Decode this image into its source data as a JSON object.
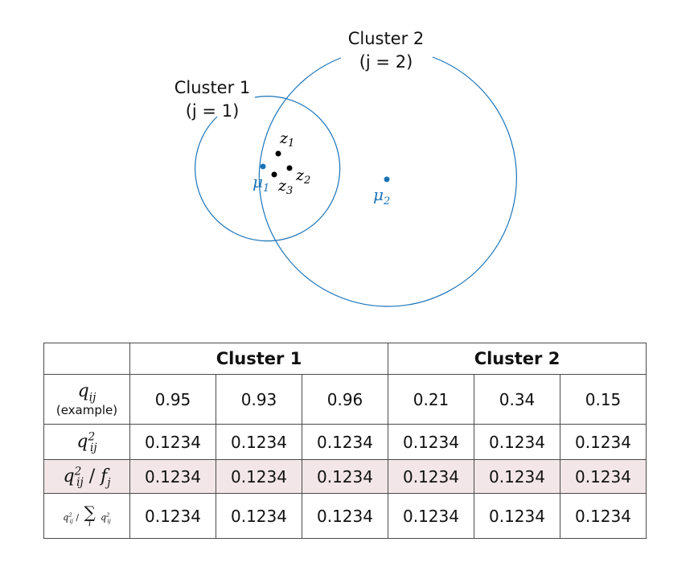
{
  "diagram": {
    "cluster1_title": "Cluster 1",
    "cluster1_sub": "(j = 1)",
    "cluster2_title": "Cluster 2",
    "cluster2_sub": "(j = 2)",
    "mu1": "μ",
    "mu1_sub": "1",
    "mu2": "μ",
    "mu2_sub": "2",
    "z1": "z",
    "z1_sub": "1",
    "z2": "z",
    "z2_sub": "2",
    "z3": "z",
    "z3_sub": "3",
    "colors": {
      "circle": "#1a73b8",
      "centroid": "#1a73b8",
      "point": "#000000"
    }
  },
  "table": {
    "groups": [
      "Cluster 1",
      "Cluster 2"
    ],
    "rows": [
      {
        "label_sym": "q",
        "label_sub": "ij",
        "label_note": "(example)",
        "values": [
          "0.95",
          "0.93",
          "0.96",
          "0.21",
          "0.34",
          "0.15"
        ]
      },
      {
        "label_sym": "q",
        "label_sub": "ij",
        "label_sup": "2",
        "values": [
          "0.1234",
          "0.1234",
          "0.1234",
          "0.1234",
          "0.1234",
          "0.1234"
        ]
      },
      {
        "label_sym": "q",
        "label_sub": "ij",
        "label_sup": "2",
        "label_div": "/",
        "label_f": "f",
        "label_fsub": "j",
        "values": [
          "0.1234",
          "0.1234",
          "0.1234",
          "0.1234",
          "0.1234",
          "0.1234"
        ],
        "highlight": "#f2e6e8"
      },
      {
        "label_sym": "q",
        "label_sub": "ij",
        "label_sup": "2",
        "label_div": "/",
        "label_sum": "∑",
        "label_sum_idx": "i",
        "values": [
          "0.1234",
          "0.1234",
          "0.1234",
          "0.1234",
          "0.1234",
          "0.1234"
        ]
      }
    ]
  }
}
